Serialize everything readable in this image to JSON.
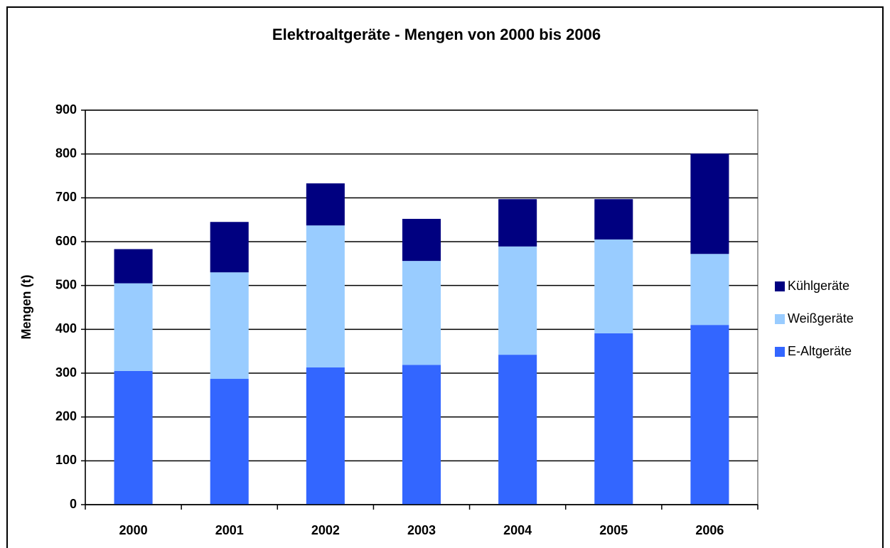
{
  "chart_data": {
    "type": "stacked_bar",
    "title": "Elektroaltgeräte - Mengen von 2000 bis 2006",
    "y_label": "Mengen (t)",
    "categories": [
      "2000",
      "2001",
      "2002",
      "2003",
      "2004",
      "2005",
      "2006"
    ],
    "series": [
      {
        "name": "E-Altgeräte",
        "color": "#3366ff",
        "values": [
          305,
          287,
          313,
          319,
          342,
          391,
          410
        ]
      },
      {
        "name": "Weißgeräte",
        "color": "#99ccff",
        "values": [
          200,
          243,
          324,
          237,
          247,
          214,
          162
        ]
      },
      {
        "name": "Kühlgeräte",
        "color": "#000080",
        "values": [
          78,
          115,
          96,
          96,
          108,
          92,
          229
        ]
      }
    ],
    "ylim": [
      0,
      900
    ],
    "yticks": [
      0,
      100,
      200,
      300,
      400,
      500,
      600,
      700,
      800,
      900
    ],
    "grid": true,
    "legend": "right"
  }
}
